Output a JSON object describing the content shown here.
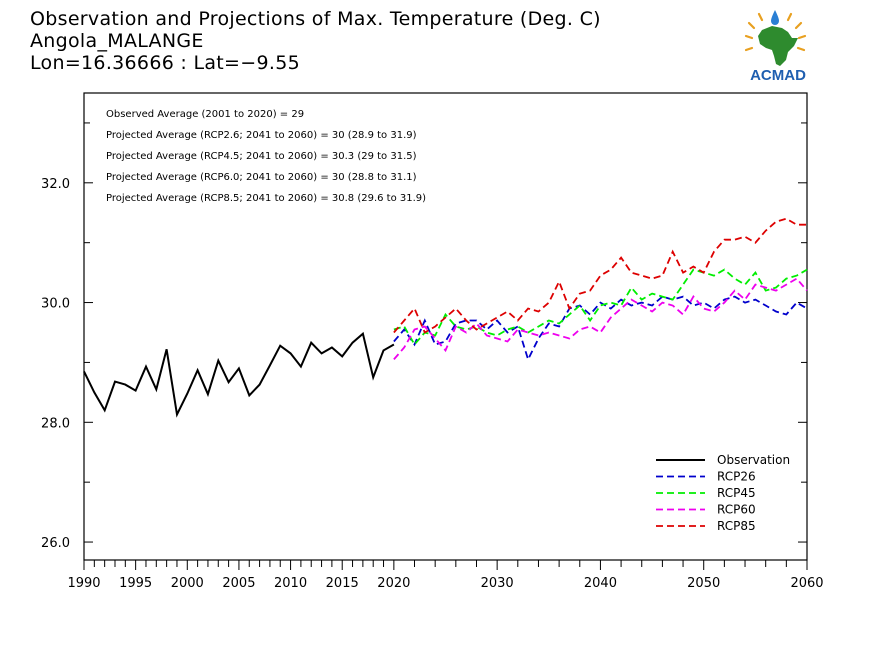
{
  "header": {
    "title": "Observation and Projections of Max. Temperature (Deg. C)",
    "location": "Angola_MALANGE",
    "coords": "Lon=16.36666 : Lat=−9.55"
  },
  "logo": {
    "text": "ACMAD",
    "icon": "acmad-africa-logo"
  },
  "annotations": [
    "Observed Average (2001 to 2020) = 29",
    "Projected Average (RCP2.6; 2041 to 2060) = 30 (28.9 to 31.9)",
    "Projected Average (RCP4.5; 2041 to 2060) = 30.3 (29 to 31.5)",
    "Projected Average (RCP6.0; 2041 to 2060) = 30 (28.8 to 31.1)",
    "Projected Average (RCP8.5; 2041 to 2060) = 30.8 (29.6 to 31.9)"
  ],
  "chart_data": {
    "type": "line",
    "grid": false,
    "legend_position": "bottom-right",
    "xlim": [
      1990,
      2060
    ],
    "ylim": [
      25.7,
      33.5
    ],
    "x_ticks": [
      {
        "value": 1990,
        "label": "1990"
      },
      {
        "value": 1995,
        "label": "1995"
      },
      {
        "value": 2000,
        "label": "2000"
      },
      {
        "value": 2005,
        "label": "2005"
      },
      {
        "value": 2010,
        "label": "2010"
      },
      {
        "value": 2015,
        "label": "2015"
      },
      {
        "value": 2020,
        "label": "2020"
      },
      {
        "value": 2030,
        "label": "2030"
      },
      {
        "value": 2040,
        "label": "2040"
      },
      {
        "value": 2050,
        "label": "2050"
      },
      {
        "value": 2060,
        "label": "2060"
      }
    ],
    "y_ticks": [
      {
        "value": 26,
        "label": "26.0"
      },
      {
        "value": 28,
        "label": "28.0"
      },
      {
        "value": 30,
        "label": "30.0"
      },
      {
        "value": 32,
        "label": "32.0"
      }
    ],
    "series": [
      {
        "name": "Observation",
        "color": "#000000",
        "dash": "solid",
        "x": [
          1990,
          1991,
          1992,
          1993,
          1994,
          1995,
          1996,
          1997,
          1998,
          1999,
          2000,
          2001,
          2002,
          2003,
          2004,
          2005,
          2006,
          2007,
          2008,
          2009,
          2010,
          2011,
          2012,
          2013,
          2014,
          2015,
          2016,
          2017,
          2018,
          2019,
          2020
        ],
        "y": [
          28.85,
          28.5,
          28.2,
          28.68,
          28.63,
          28.53,
          28.93,
          28.55,
          29.22,
          28.13,
          28.48,
          28.87,
          28.47,
          29.03,
          28.67,
          28.9,
          28.45,
          28.63,
          28.95,
          29.28,
          29.15,
          28.93,
          29.33,
          29.15,
          29.25,
          29.1,
          29.33,
          29.48,
          28.75,
          29.2,
          29.3
        ]
      },
      {
        "name": "RCP26",
        "color": "#0000cc",
        "dash": "dashed",
        "x": [
          2020,
          2021,
          2022,
          2023,
          2024,
          2025,
          2026,
          2027,
          2028,
          2029,
          2030,
          2031,
          2032,
          2033,
          2034,
          2035,
          2036,
          2037,
          2038,
          2039,
          2040,
          2041,
          2042,
          2043,
          2044,
          2045,
          2046,
          2047,
          2048,
          2049,
          2050,
          2051,
          2052,
          2053,
          2054,
          2055,
          2056,
          2057,
          2058,
          2059,
          2060
        ],
        "y": [
          29.35,
          29.55,
          29.3,
          29.7,
          29.3,
          29.35,
          29.65,
          29.7,
          29.7,
          29.55,
          29.7,
          29.5,
          29.6,
          29.05,
          29.4,
          29.65,
          29.6,
          29.9,
          29.95,
          29.8,
          30.0,
          29.9,
          30.05,
          29.95,
          30.0,
          29.95,
          30.1,
          30.05,
          30.1,
          29.95,
          30.0,
          29.9,
          30.05,
          30.1,
          30.0,
          30.05,
          29.95,
          29.85,
          29.8,
          30.0,
          29.9
        ]
      },
      {
        "name": "RCP45",
        "color": "#00ee00",
        "dash": "dashed",
        "x": [
          2020,
          2021,
          2022,
          2023,
          2024,
          2025,
          2026,
          2027,
          2028,
          2029,
          2030,
          2031,
          2032,
          2033,
          2034,
          2035,
          2036,
          2037,
          2038,
          2039,
          2040,
          2041,
          2042,
          2043,
          2044,
          2045,
          2046,
          2047,
          2048,
          2049,
          2050,
          2051,
          2052,
          2053,
          2054,
          2055,
          2056,
          2057,
          2058,
          2059,
          2060
        ],
        "y": [
          29.55,
          29.6,
          29.3,
          29.5,
          29.45,
          29.8,
          29.6,
          29.55,
          29.6,
          29.5,
          29.45,
          29.55,
          29.6,
          29.5,
          29.6,
          29.7,
          29.65,
          29.8,
          29.95,
          29.7,
          29.95,
          30.0,
          29.95,
          30.25,
          30.05,
          30.15,
          30.1,
          30.05,
          30.3,
          30.55,
          30.5,
          30.45,
          30.55,
          30.4,
          30.3,
          30.5,
          30.2,
          30.25,
          30.4,
          30.45,
          30.55
        ]
      },
      {
        "name": "RCP60",
        "color": "#ee00ee",
        "dash": "dashed",
        "x": [
          2020,
          2021,
          2022,
          2023,
          2024,
          2025,
          2026,
          2027,
          2028,
          2029,
          2030,
          2031,
          2032,
          2033,
          2034,
          2035,
          2036,
          2037,
          2038,
          2039,
          2040,
          2041,
          2042,
          2043,
          2044,
          2045,
          2046,
          2047,
          2048,
          2049,
          2050,
          2051,
          2052,
          2053,
          2054,
          2055,
          2056,
          2057,
          2058,
          2059,
          2060
        ],
        "y": [
          29.05,
          29.25,
          29.55,
          29.6,
          29.4,
          29.2,
          29.6,
          29.5,
          29.65,
          29.45,
          29.4,
          29.35,
          29.55,
          29.5,
          29.45,
          29.5,
          29.45,
          29.4,
          29.55,
          29.6,
          29.5,
          29.75,
          29.9,
          30.05,
          29.95,
          29.85,
          30.0,
          29.95,
          29.8,
          30.1,
          29.9,
          29.85,
          30.0,
          30.2,
          30.05,
          30.3,
          30.25,
          30.2,
          30.3,
          30.4,
          30.2
        ]
      },
      {
        "name": "RCP85",
        "color": "#dd0000",
        "dash": "dashed",
        "x": [
          2020,
          2021,
          2022,
          2023,
          2024,
          2025,
          2026,
          2027,
          2028,
          2029,
          2030,
          2031,
          2032,
          2033,
          2034,
          2035,
          2036,
          2037,
          2038,
          2039,
          2040,
          2041,
          2042,
          2043,
          2044,
          2045,
          2046,
          2047,
          2048,
          2049,
          2050,
          2051,
          2052,
          2053,
          2054,
          2055,
          2056,
          2057,
          2058,
          2059,
          2060
        ],
        "y": [
          29.5,
          29.7,
          29.9,
          29.5,
          29.6,
          29.75,
          29.9,
          29.7,
          29.55,
          29.65,
          29.75,
          29.85,
          29.7,
          29.9,
          29.85,
          30.0,
          30.35,
          29.9,
          30.15,
          30.2,
          30.45,
          30.55,
          30.75,
          30.5,
          30.45,
          30.4,
          30.45,
          30.85,
          30.5,
          30.6,
          30.5,
          30.85,
          31.05,
          31.05,
          31.1,
          31.0,
          31.2,
          31.35,
          31.4,
          31.3,
          31.3
        ]
      }
    ]
  }
}
